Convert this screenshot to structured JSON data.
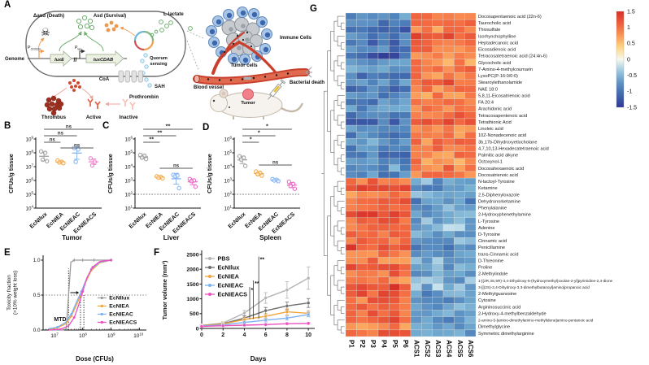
{
  "panels": {
    "a": "A",
    "b": "B",
    "c": "C",
    "d": "D",
    "e": "E",
    "f": "F",
    "g": "G"
  },
  "panel_a": {
    "icons": {
      "skull": "☠"
    },
    "labels": {
      "dasd_death": "Δasd (Death)",
      "asd_survival": "Asd (Survival)",
      "l_lactate": "L-lactate",
      "genome": "Genome",
      "p_prefix": "P",
      "p_j23119_sub": "J23119",
      "p_las_sub": "las",
      "gene_luxe": "luxE",
      "gene_luxcdab": "luxCDAB",
      "quorum_line1": "Quorum",
      "quorum_line2": "sensing",
      "coa": "CoA",
      "sah": "SAH",
      "prothrombin": "Prothrombin",
      "thrombus": "Thrombus",
      "active": "Active",
      "inactive": "Inactive",
      "immune_cells": "Immune Cells",
      "tumor_cells": "Tumor cells",
      "blood_vessel": "Blood vessel",
      "bacterial_death": "Bacterial death",
      "tumor": "Tumor"
    }
  },
  "chart_data": [
    {
      "id": "B",
      "type": "scatter",
      "xlabel": "Tumor",
      "ylabel": "CFUs/g tissue",
      "categories": [
        "EcNIlux",
        "EcNIEA",
        "EcNIEAC",
        "EcNIEACS"
      ],
      "colors": [
        "#9e9e9e",
        "#f2a43c",
        "#7cb0f2",
        "#f07cc8"
      ],
      "ylim_exp": [
        4,
        9
      ],
      "detection_limit_exp": null,
      "values_log10": [
        [
          8.1,
          8.0,
          7.5,
          7.4
        ],
        [
          7.45,
          7.35,
          7.3,
          7.25
        ],
        [
          8.35,
          8.25,
          7.35
        ],
        [
          7.6,
          7.35,
          7.1
        ]
      ],
      "sig": [
        {
          "from": 0,
          "to": 3,
          "label": "ns",
          "y": 8
        },
        {
          "from": 0,
          "to": 2,
          "label": "ns",
          "y": 16
        },
        {
          "from": 0,
          "to": 1,
          "label": "ns",
          "y": 24
        },
        {
          "from": 1,
          "to": 3,
          "label": "ns",
          "y": 31
        }
      ]
    },
    {
      "id": "C",
      "type": "scatter",
      "xlabel": "Liver",
      "ylabel": "CFUs/g tissue",
      "categories": [
        "EcNIlux",
        "EcNIEA",
        "EcNIEAC",
        "EcNIEACS"
      ],
      "colors": [
        "#9e9e9e",
        "#f2a43c",
        "#7cb0f2",
        "#ec5fc4"
      ],
      "ylim_exp": [
        1,
        6
      ],
      "detection_limit_exp": 2,
      "values_log10": [
        [
          4.85,
          4.8,
          4.65,
          4.55
        ],
        [
          3.3,
          3.25,
          3.2,
          3.15
        ],
        [
          3.4,
          3.35,
          3.3,
          2.45
        ],
        [
          3.1,
          3.0,
          2.95,
          2.55
        ]
      ],
      "sig": [
        {
          "from": 0,
          "to": 3,
          "label": "**",
          "y": 8
        },
        {
          "from": 0,
          "to": 2,
          "label": "**",
          "y": 16
        },
        {
          "from": 0,
          "to": 1,
          "label": "**",
          "y": 24
        },
        {
          "from": 1,
          "to": 3,
          "label": "ns",
          "y": 56
        }
      ]
    },
    {
      "id": "D",
      "type": "scatter",
      "xlabel": "Spleen",
      "ylabel": "CFUs/g tissue",
      "categories": [
        "EcNIlux",
        "EcNIEA",
        "EcNIEAC",
        "EcNIEACS"
      ],
      "colors": [
        "#9e9e9e",
        "#f2a43c",
        "#7cb0f2",
        "#ec5fc4"
      ],
      "ylim_exp": [
        1,
        6
      ],
      "detection_limit_exp": 2,
      "values_log10": [
        [
          4.75,
          4.65,
          4.5,
          4.05
        ],
        [
          3.65,
          3.55,
          3.45,
          3.35
        ],
        [
          3.1,
          3.05,
          3.0,
          2.95
        ],
        [
          2.9,
          2.75,
          2.6,
          2.4
        ]
      ],
      "sig": [
        {
          "from": 0,
          "to": 3,
          "label": "*",
          "y": 8
        },
        {
          "from": 0,
          "to": 2,
          "label": "*",
          "y": 16
        },
        {
          "from": 0,
          "to": 1,
          "label": "*",
          "y": 24
        },
        {
          "from": 1,
          "to": 3,
          "label": "ns",
          "y": 52
        }
      ]
    },
    {
      "id": "E",
      "type": "line",
      "xlabel": "Dose (CFUs)",
      "ylabel_line1": "Toxicity fraction",
      "ylabel_line2": "(>10% weight loss)",
      "mtd_label": "MTD",
      "x_ticks_exp": [
        7,
        8,
        9,
        10
      ],
      "x_range_exp": [
        6.6,
        10.25
      ],
      "y_ticks": [
        0,
        0.5,
        1
      ],
      "mtd_lines": [
        {
          "exp": 7.5,
          "top": 0.88
        },
        {
          "exp": 7.92,
          "top": 0.5
        },
        {
          "exp": 8.04,
          "top": 0.5
        }
      ],
      "series": [
        {
          "name": "EcNIlux",
          "color": "#9a9a9a",
          "marker": "plus",
          "x_exp": [
            6.8,
            7.1,
            7.3,
            7.42,
            7.5,
            7.58,
            7.7,
            8.0,
            8.4,
            9.0
          ],
          "y": [
            0,
            0,
            0,
            0.02,
            0.5,
            0.97,
            1,
            1,
            1,
            1
          ]
        },
        {
          "name": "EcNIEA",
          "color": "#f2a43c",
          "marker": "dot",
          "x_exp": [
            6.8,
            7.1,
            7.4,
            7.6,
            7.8,
            7.95,
            8.1,
            8.3,
            8.6,
            9.0
          ],
          "y": [
            0.01,
            0.03,
            0.09,
            0.2,
            0.38,
            0.52,
            0.68,
            0.85,
            0.96,
            1
          ]
        },
        {
          "name": "EcNIEAC",
          "color": "#7cb0f2",
          "marker": "dot",
          "x_exp": [
            6.8,
            7.1,
            7.4,
            7.6,
            7.8,
            7.95,
            8.1,
            8.3,
            8.6,
            9.0
          ],
          "y": [
            0.02,
            0.04,
            0.11,
            0.23,
            0.42,
            0.55,
            0.7,
            0.87,
            0.97,
            1
          ]
        },
        {
          "name": "EcNIEACS",
          "color": "#ec4fc0",
          "marker": "dot",
          "x_exp": [
            6.8,
            7.2,
            7.5,
            7.7,
            7.85,
            8.0,
            8.15,
            8.35,
            8.6,
            9.0
          ],
          "y": [
            0,
            0.01,
            0.06,
            0.18,
            0.35,
            0.55,
            0.75,
            0.9,
            0.98,
            1
          ]
        }
      ]
    },
    {
      "id": "F",
      "type": "line",
      "xlabel": "Days",
      "ylabel": "Tumor volume (mm³)",
      "x": [
        0,
        2,
        4,
        6,
        8,
        10
      ],
      "y_ticks": [
        0,
        500,
        1000,
        1500,
        2000,
        2500
      ],
      "series": [
        {
          "name": "PBS",
          "color": "#b3b3b3",
          "values": [
            100,
            180,
            520,
            1030,
            1300,
            1700
          ],
          "err": [
            30,
            45,
            90,
            180,
            280,
            380
          ]
        },
        {
          "name": "EcNIlux",
          "color": "#6e6e6e",
          "values": [
            100,
            160,
            350,
            600,
            760,
            860
          ],
          "err": [
            25,
            35,
            70,
            110,
            130,
            150
          ]
        },
        {
          "name": "EcNIEA",
          "color": "#f2a43c",
          "values": [
            90,
            150,
            300,
            410,
            560,
            510
          ],
          "err": [
            20,
            30,
            60,
            80,
            100,
            90
          ]
        },
        {
          "name": "EcNIEAC",
          "color": "#7cb0f2",
          "values": [
            80,
            120,
            200,
            280,
            350,
            470
          ],
          "err": [
            15,
            25,
            40,
            60,
            70,
            80
          ]
        },
        {
          "name": "EcNIEACS",
          "color": "#ec4fc0",
          "values": [
            70,
            90,
            110,
            130,
            160,
            170
          ],
          "err": [
            10,
            15,
            20,
            25,
            30,
            30
          ]
        }
      ],
      "sig": [
        {
          "label": "*",
          "day": 4.5,
          "from": 320,
          "to": 1400
        },
        {
          "label": "**",
          "day": 4.85,
          "from": 320,
          "to": 1620
        },
        {
          "label": "**",
          "day": 5.35,
          "from": 320,
          "to": 2430
        }
      ]
    },
    {
      "id": "G",
      "type": "heatmap",
      "columns": [
        "P1",
        "P2",
        "P3",
        "P4",
        "P5",
        "P6",
        "ACS1",
        "ACS2",
        "ACS3",
        "ACS4",
        "ACS5",
        "ACS6"
      ],
      "colorbar_ticks": [
        "1.5",
        "1",
        "0.5",
        "0",
        "-0.5",
        "-1",
        "-1.5"
      ],
      "rows": [
        [
          "Docosapentaenoic acid (22n-6)",
          -0.7,
          0.9
        ],
        [
          "Taurocholic acid",
          -0.9,
          1.0
        ],
        [
          "Thiosulfate",
          -1.1,
          0.8
        ],
        [
          "Isorhynchophylline",
          -0.8,
          1.1
        ],
        [
          "Heptadecanoic acid",
          -1.0,
          0.9
        ],
        [
          "Eicosadienoic acid",
          -0.9,
          1.0
        ],
        [
          "Tetracosatetraenoic acid (24:4n-6)",
          -1.2,
          0.9
        ],
        [
          "Glycocholic acid",
          -0.8,
          0.8
        ],
        [
          "7-Amino-4-methylcoumarin",
          -0.7,
          1.0
        ],
        [
          "LysoPC(P-16:0/0:0)",
          -0.9,
          0.9
        ],
        [
          "Stearoylethanolamide",
          -0.8,
          1.1
        ],
        [
          "NAE 18:0",
          -1.0,
          0.9
        ],
        [
          "5,8,11-Eicosatrienoic acid",
          -0.9,
          0.8
        ],
        [
          "FA 20:4",
          -0.8,
          1.0
        ],
        [
          "Arachidonic acid",
          -0.7,
          0.9
        ],
        [
          "Tetracosapentenoic acid",
          -0.9,
          1.0
        ],
        [
          "Tetrathionic Acid",
          -1.0,
          1.1
        ],
        [
          "Linoleic acid",
          -0.8,
          0.9
        ],
        [
          "10Z-Nonadecenoic acid",
          -0.9,
          0.8
        ],
        [
          "3b,17b-Dihydroxyetiocholane",
          -0.7,
          0.9
        ],
        [
          "4,7,10,13-Hexadecatetraenoic acid",
          -0.8,
          1.0
        ],
        [
          "Palmitic acid alkyne",
          -0.9,
          0.9
        ],
        [
          "Octoxynol-1",
          -0.8,
          0.8
        ],
        [
          "Docosahexaenoic acid",
          -0.7,
          0.9
        ],
        [
          "Docosatrienoic acid",
          -0.8,
          0.9
        ],
        [
          "N-lactoyl-Tyrosine",
          1.0,
          -0.6
        ],
        [
          "Ketamine",
          1.2,
          -0.7
        ],
        [
          "2,5-Diphenyloxazole",
          0.9,
          -0.5
        ],
        [
          "Dehydronorketamine",
          1.1,
          -0.8
        ],
        [
          "Phenylalanine",
          1.0,
          -0.6
        ],
        [
          "2-Hydroxyphenethylamine",
          1.2,
          -0.7
        ],
        [
          "L-Tyrosine",
          1.1,
          -0.6
        ],
        [
          "Adenine",
          0.9,
          -0.5
        ],
        [
          "D-Tyrosine",
          1.0,
          -0.7
        ],
        [
          "Cinnamic acid",
          1.1,
          -0.6
        ],
        [
          "Penicillamine",
          1.2,
          -0.8
        ],
        [
          "trans-Cinnamic acid",
          1.0,
          -0.7
        ],
        [
          "D-Threonine",
          0.9,
          -0.5
        ],
        [
          "Proline",
          1.1,
          -0.6
        ],
        [
          "2-Methylindole",
          1.0,
          -0.7
        ],
        [
          "1-[(2R,3S,5R)-3,4-Dihydroxy-5-(hydroxymethyl)oxolan-2-yl]pyrimidine-2,4-dione",
          0.9,
          -0.6
        ],
        [
          "3-[[(2S)-2,4-Dihydroxy-3,3-dimethylbutanoyl]amino]propanoic acid",
          1.3,
          -0.5
        ],
        [
          "2-Methylguanosine",
          1.1,
          -0.7
        ],
        [
          "Cytosine",
          1.0,
          -0.8
        ],
        [
          "Argininosuccinic acid",
          0.9,
          -0.6
        ],
        [
          "2-Hydroxy-4-methylbenzaldehyde",
          1.0,
          -0.5
        ],
        [
          "2-amino-5-[amino-dimethylamino-methylidene]amino-pentanoic acid",
          1.1,
          -0.7
        ],
        [
          "Dimethylglycine",
          0.9,
          -0.6
        ],
        [
          "Symmetric dimethylarginine",
          1.0,
          -0.6
        ]
      ]
    }
  ]
}
